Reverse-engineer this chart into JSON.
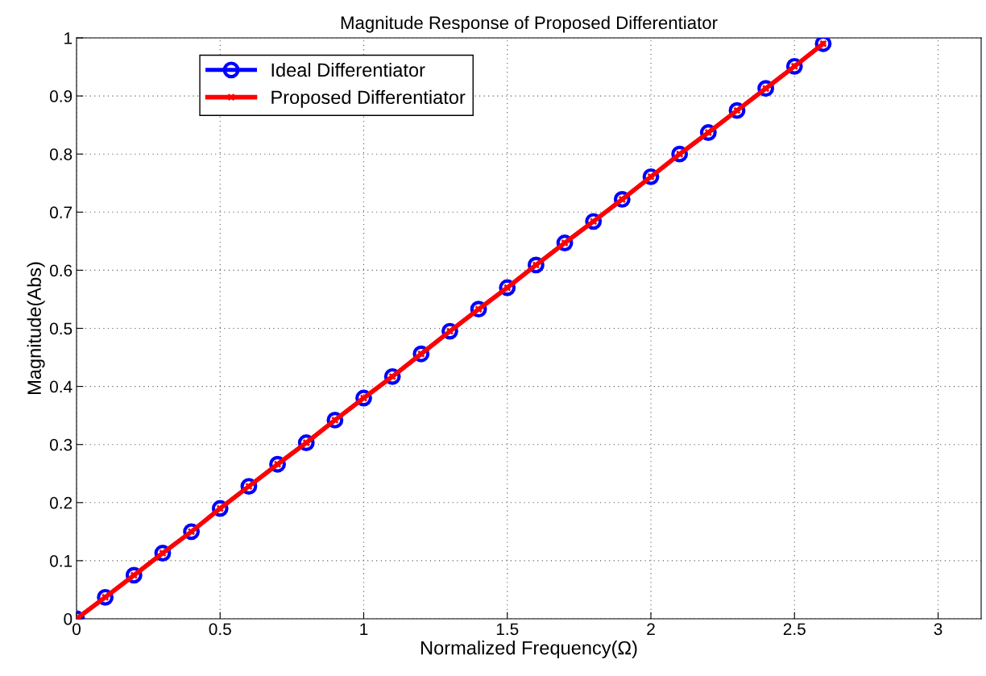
{
  "chart_data": {
    "type": "line",
    "title": "Magnitude Response of Proposed Differentiator",
    "xlabel": "Normalized Frequency(Ω)",
    "ylabel": "Magnitude(Abs)",
    "x": [
      0,
      0.1,
      0.2,
      0.3,
      0.4,
      0.5,
      0.6,
      0.7,
      0.8,
      0.9,
      1.0,
      1.1,
      1.2,
      1.3,
      1.4,
      1.5,
      1.6,
      1.7,
      1.8,
      1.9,
      2.0,
      2.1,
      2.2,
      2.3,
      2.4,
      2.5,
      2.6
    ],
    "series": [
      {
        "name": "Ideal Differentiator",
        "color": "#0000ff",
        "marker": "circle",
        "values": [
          0,
          0.037,
          0.075,
          0.113,
          0.15,
          0.19,
          0.228,
          0.266,
          0.303,
          0.342,
          0.38,
          0.417,
          0.456,
          0.495,
          0.533,
          0.57,
          0.609,
          0.647,
          0.684,
          0.722,
          0.761,
          0.8,
          0.837,
          0.875,
          0.913,
          0.951,
          0.99
        ]
      },
      {
        "name": "Proposed Differentiator",
        "color": "#ff0000",
        "marker": "cross",
        "values": [
          0,
          0.037,
          0.075,
          0.113,
          0.15,
          0.19,
          0.228,
          0.266,
          0.303,
          0.342,
          0.38,
          0.417,
          0.456,
          0.495,
          0.533,
          0.57,
          0.609,
          0.647,
          0.684,
          0.722,
          0.761,
          0.8,
          0.837,
          0.875,
          0.913,
          0.951,
          0.99
        ]
      }
    ],
    "xlim": [
      0,
      3.15
    ],
    "ylim": [
      0,
      1
    ],
    "xticks": [
      0,
      0.5,
      1,
      1.5,
      2,
      2.5,
      3
    ],
    "yticks": [
      0,
      0.1,
      0.2,
      0.3,
      0.4,
      0.5,
      0.6,
      0.7,
      0.8,
      0.9,
      1
    ],
    "grid": true,
    "legend": "top left",
    "line_style": "solid"
  }
}
